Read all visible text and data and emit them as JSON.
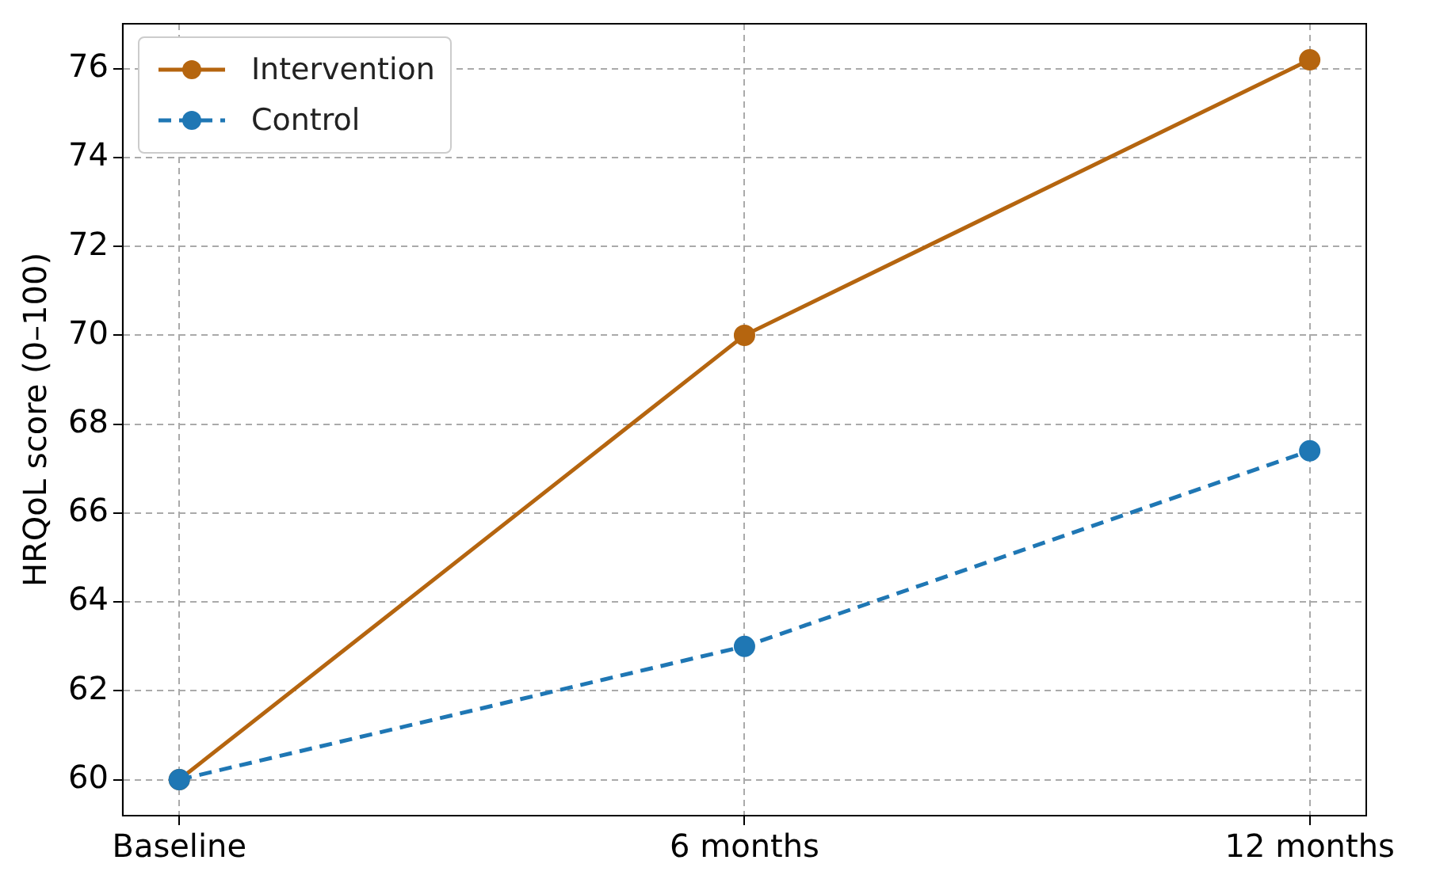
{
  "chart_data": {
    "type": "line",
    "ylabel": "HRQoL score (0–100)",
    "categories": [
      "Baseline",
      "6 months",
      "12 months"
    ],
    "series": [
      {
        "name": "Intervention",
        "color": "#b5650f",
        "values": [
          60,
          70,
          76.2
        ],
        "line_style": "solid"
      },
      {
        "name": "Control",
        "color": "#1f77b4",
        "values": [
          60,
          63,
          67.4
        ],
        "line_style": "dashed"
      }
    ],
    "ylim": [
      59.19,
      77.01
    ],
    "yticks": [
      60,
      62,
      64,
      66,
      68,
      70,
      72,
      74,
      76
    ],
    "grid": true,
    "legend": "top left",
    "marker": "circle"
  }
}
